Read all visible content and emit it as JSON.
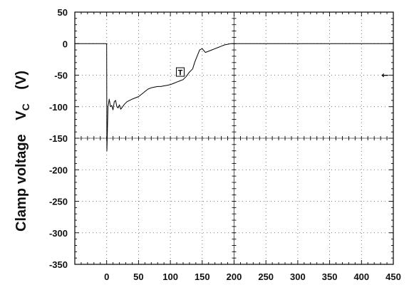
{
  "chart_data": {
    "type": "line",
    "title": "",
    "xlabel": "",
    "ylabel_parts": {
      "name": "Clamp voltage",
      "symbol": "V",
      "subscript": "C",
      "unit": "(V)"
    },
    "xlim": [
      -50,
      450
    ],
    "ylim": [
      -350,
      50
    ],
    "x_ticks": [
      0,
      50,
      100,
      150,
      200,
      250,
      300,
      350,
      400,
      450
    ],
    "y_ticks": [
      50,
      0,
      -50,
      -100,
      -150,
      -200,
      -250,
      -300,
      -350
    ],
    "grid": "dotted",
    "series": [
      {
        "color": "#000000",
        "x": [
          -50,
          -5,
          -1,
          0,
          0.3,
          1,
          2,
          3,
          4,
          6,
          8,
          10,
          12,
          14,
          16,
          18,
          20,
          22,
          25,
          28,
          32,
          36,
          40,
          45,
          50,
          55,
          60,
          65,
          70,
          75,
          80,
          85,
          90,
          95,
          100,
          105,
          110,
          115,
          120,
          125,
          130,
          135,
          138,
          142,
          146,
          150,
          155,
          160,
          165,
          170,
          175,
          180,
          185,
          190,
          195,
          200,
          250,
          300,
          350,
          400,
          450
        ],
        "y": [
          0,
          0,
          0,
          0,
          -170,
          -145,
          -100,
          -95,
          -88,
          -100,
          -98,
          -105,
          -92,
          -90,
          -100,
          -102,
          -97,
          -104,
          -100,
          -96,
          -92,
          -90,
          -88,
          -86,
          -84,
          -80,
          -76,
          -72,
          -70,
          -69,
          -68,
          -68,
          -67,
          -66,
          -65,
          -63,
          -61,
          -59,
          -57,
          -52,
          -45,
          -40,
          -30,
          -20,
          -10,
          -8,
          -14,
          -12,
          -10,
          -8,
          -6,
          -4,
          -2,
          -1,
          0,
          0,
          0,
          0,
          0,
          0,
          0
        ]
      }
    ],
    "annotations": [
      {
        "text": "T",
        "x": 115,
        "y": -45
      },
      {
        "text": "←",
        "x": 437,
        "y": -50
      }
    ]
  }
}
